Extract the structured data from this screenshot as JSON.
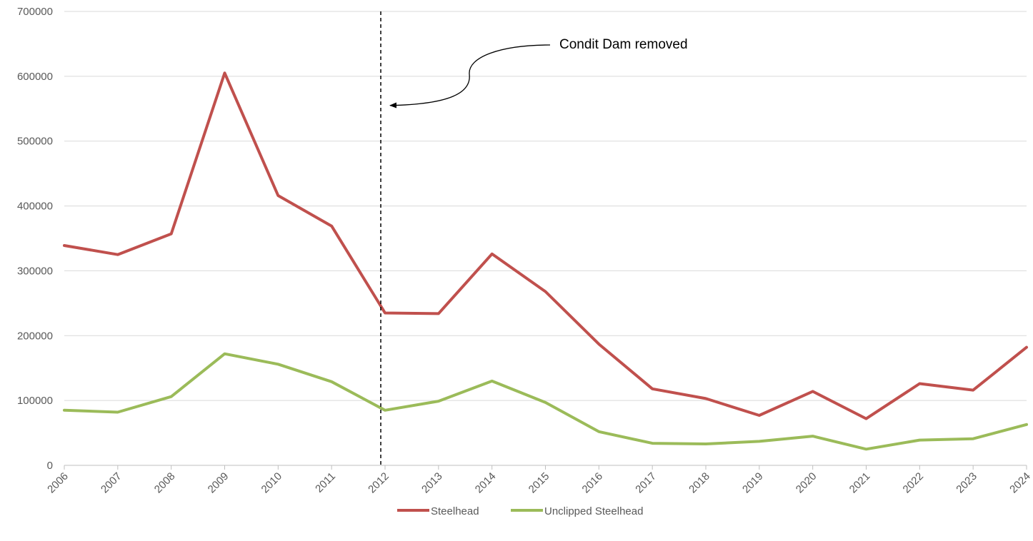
{
  "chart_data": {
    "type": "line",
    "title": "",
    "xlabel": "",
    "ylabel": "",
    "x": [
      "2006",
      "2007",
      "2008",
      "2009",
      "2010",
      "2011",
      "2012",
      "2013",
      "2014",
      "2015",
      "2016",
      "2017",
      "2018",
      "2019",
      "2020",
      "2021",
      "2022",
      "2023",
      "2024"
    ],
    "ylim": [
      0,
      700000
    ],
    "yticks": [
      0,
      100000,
      200000,
      300000,
      400000,
      500000,
      600000,
      700000
    ],
    "ytick_labels": [
      "0",
      "100000",
      "200000",
      "300000",
      "400000",
      "500000",
      "600000",
      "700000"
    ],
    "grid": "horizontal",
    "legend_position": "bottom",
    "series": [
      {
        "name": "Steelhead",
        "color": "#c0504d",
        "values": [
          339000,
          325000,
          357000,
          605000,
          416000,
          369000,
          235000,
          234000,
          326000,
          268000,
          187000,
          118000,
          103000,
          77000,
          114000,
          72000,
          126000,
          116000,
          182000
        ]
      },
      {
        "name": "Unclipped Steelhead",
        "color": "#9bbb59",
        "values": [
          85000,
          82000,
          106000,
          172000,
          156000,
          129000,
          85000,
          99000,
          130000,
          97000,
          52000,
          34000,
          33000,
          37000,
          45000,
          25000,
          39000,
          41000,
          63000
        ]
      }
    ],
    "annotation": {
      "text": "Condit Dam removed",
      "at_x": "2012",
      "point_y": 555000,
      "line_style": "dashed",
      "color": "#000000"
    }
  }
}
